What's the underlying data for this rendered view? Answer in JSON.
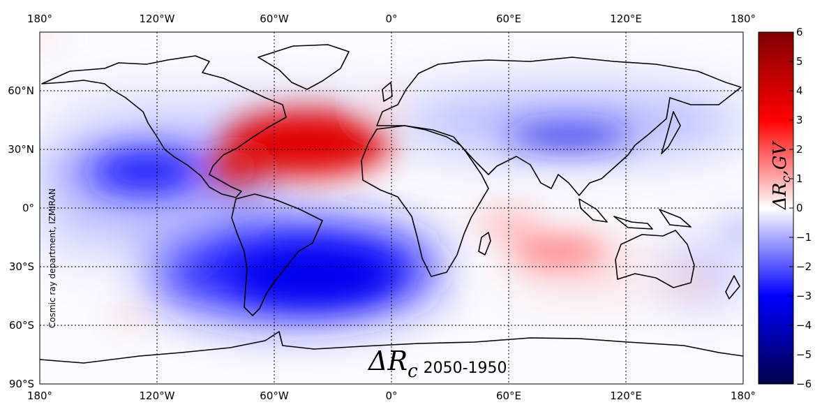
{
  "map": {
    "title_symbol": "ΔR",
    "title_subscript": "c",
    "title_suffix": "2050-1950",
    "watermark": "Cosmic ray department, IZMIRAN",
    "lon_ticks_top": [
      "180°",
      "120°W",
      "60°W",
      "0°",
      "60°E",
      "120°E",
      "180°"
    ],
    "lon_ticks_bottom": [
      "180°",
      "120°W",
      "60°W",
      "0°",
      "60°E",
      "120°E",
      "180°"
    ],
    "lat_ticks": [
      "60°N",
      "30°N",
      "0°",
      "30°S",
      "60°S",
      "90°S"
    ],
    "gridlines": true
  },
  "colorbar": {
    "label_main": "ΔR",
    "label_sub": "c",
    "label_unit": ",GV",
    "ticks": [
      "6",
      "5",
      "4",
      "3",
      "2",
      "1",
      "0",
      "−1",
      "−2",
      "−3",
      "−4",
      "−5",
      "−6"
    ],
    "range": [
      -6,
      6
    ],
    "colormap": "seismic",
    "colors": [
      "#00004c",
      "#0000ff",
      "#ffffff",
      "#ff0000",
      "#800000"
    ]
  }
}
